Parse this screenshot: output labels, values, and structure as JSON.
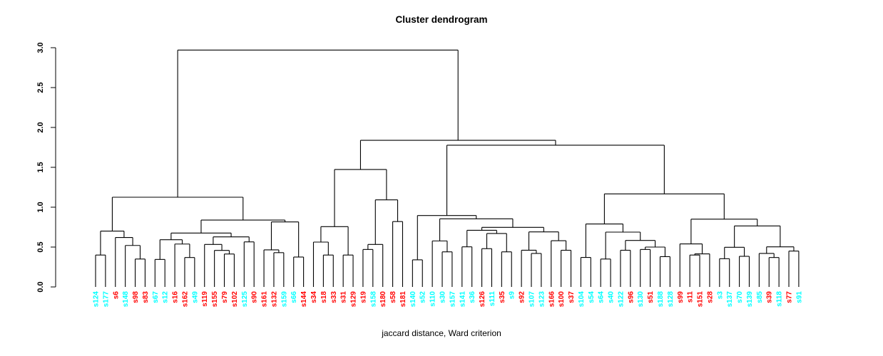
{
  "title": "Cluster dendrogram",
  "caption": "jaccard distance, Ward criterion",
  "palette": {
    "red": "#FF0000",
    "cyan": "#00FFFF",
    "line": "#000000"
  },
  "chart_data": {
    "type": "dendrogram",
    "title": "Cluster dendrogram",
    "xlabel": "jaccard distance, Ward criterion",
    "y_axis": {
      "label": "",
      "min": 0,
      "max": 3,
      "ticks": [
        "0.0",
        "0.5",
        "1.0",
        "1.5",
        "2.0",
        "2.5",
        "3.0"
      ]
    },
    "legend": "none",
    "grid": false,
    "leaves": [
      {
        "label": "s124",
        "color": "cyan"
      },
      {
        "label": "s177",
        "color": "cyan"
      },
      {
        "label": "s6",
        "color": "red"
      },
      {
        "label": "s148",
        "color": "cyan"
      },
      {
        "label": "s98",
        "color": "red"
      },
      {
        "label": "s83",
        "color": "red"
      },
      {
        "label": "s67",
        "color": "cyan"
      },
      {
        "label": "s12",
        "color": "cyan"
      },
      {
        "label": "s16",
        "color": "red"
      },
      {
        "label": "s162",
        "color": "red"
      },
      {
        "label": "s49",
        "color": "cyan"
      },
      {
        "label": "s119",
        "color": "red"
      },
      {
        "label": "s155",
        "color": "red"
      },
      {
        "label": "s79",
        "color": "red"
      },
      {
        "label": "s102",
        "color": "red"
      },
      {
        "label": "s125",
        "color": "cyan"
      },
      {
        "label": "s90",
        "color": "red"
      },
      {
        "label": "s161",
        "color": "red"
      },
      {
        "label": "s132",
        "color": "red"
      },
      {
        "label": "s159",
        "color": "cyan"
      },
      {
        "label": "s66",
        "color": "cyan"
      },
      {
        "label": "s144",
        "color": "red"
      },
      {
        "label": "s34",
        "color": "red"
      },
      {
        "label": "s18",
        "color": "red"
      },
      {
        "label": "s33",
        "color": "red"
      },
      {
        "label": "s31",
        "color": "red"
      },
      {
        "label": "s129",
        "color": "red"
      },
      {
        "label": "s19",
        "color": "red"
      },
      {
        "label": "s158",
        "color": "cyan"
      },
      {
        "label": "s180",
        "color": "red"
      },
      {
        "label": "s58",
        "color": "red"
      },
      {
        "label": "s181",
        "color": "red"
      },
      {
        "label": "s140",
        "color": "cyan"
      },
      {
        "label": "s52",
        "color": "cyan"
      },
      {
        "label": "s110",
        "color": "cyan"
      },
      {
        "label": "s30",
        "color": "cyan"
      },
      {
        "label": "s157",
        "color": "cyan"
      },
      {
        "label": "s141",
        "color": "cyan"
      },
      {
        "label": "s36",
        "color": "cyan"
      },
      {
        "label": "s126",
        "color": "red"
      },
      {
        "label": "s111",
        "color": "cyan"
      },
      {
        "label": "s35",
        "color": "red"
      },
      {
        "label": "s9",
        "color": "cyan"
      },
      {
        "label": "s92",
        "color": "red"
      },
      {
        "label": "s107",
        "color": "cyan"
      },
      {
        "label": "s123",
        "color": "cyan"
      },
      {
        "label": "s166",
        "color": "red"
      },
      {
        "label": "s100",
        "color": "red"
      },
      {
        "label": "s37",
        "color": "red"
      },
      {
        "label": "s104",
        "color": "cyan"
      },
      {
        "label": "s54",
        "color": "cyan"
      },
      {
        "label": "s64",
        "color": "cyan"
      },
      {
        "label": "s40",
        "color": "cyan"
      },
      {
        "label": "s122",
        "color": "cyan"
      },
      {
        "label": "s96",
        "color": "red"
      },
      {
        "label": "s130",
        "color": "cyan"
      },
      {
        "label": "s51",
        "color": "red"
      },
      {
        "label": "s188",
        "color": "cyan"
      },
      {
        "label": "s128",
        "color": "cyan"
      },
      {
        "label": "s99",
        "color": "red"
      },
      {
        "label": "s11",
        "color": "red"
      },
      {
        "label": "s151",
        "color": "red"
      },
      {
        "label": "s28",
        "color": "red"
      },
      {
        "label": "s3",
        "color": "cyan"
      },
      {
        "label": "s137",
        "color": "cyan"
      },
      {
        "label": "s70",
        "color": "cyan"
      },
      {
        "label": "s139",
        "color": "cyan"
      },
      {
        "label": "s85",
        "color": "cyan"
      },
      {
        "label": "s39",
        "color": "red"
      },
      {
        "label": "s118",
        "color": "cyan"
      },
      {
        "label": "s77",
        "color": "red"
      },
      {
        "label": "s91",
        "color": "cyan"
      }
    ],
    "tree": [
      2.97,
      [
        1.125,
        [
          0.7,
          [
            0.4,
            "s124",
            "s177"
          ],
          [
            0.62,
            "s6",
            [
              0.52,
              "s148",
              [
                0.35,
                "s98",
                "s83"
              ]
            ]
          ]
        ],
        [
          0.839,
          [
            0.676,
            [
              0.592,
              [
                0.345,
                "s67",
                "s12"
              ],
              [
                0.538,
                "s16",
                [
                  0.369,
                  "s162",
                  "s49"
                ]
              ]
            ],
            [
              0.628,
              [
                0.533,
                "s119",
                [
                  0.458,
                  "s155",
                  [
                    0.413,
                    "s79",
                    "s102"
                  ]
                ]
              ],
              [
                0.565,
                "s125",
                "s90"
              ]
            ]
          ],
          [
            0.815,
            [
              0.465,
              "s161",
              [
                0.43,
                "s132",
                "s159"
              ]
            ],
            [
              0.375,
              "s66",
              "s144"
            ]
          ]
        ]
      ],
      [
        1.839,
        [
          1.473,
          [
            0.756,
            [
              0.5625,
              "s34",
              [
                0.4,
                "s18",
                "s33"
              ]
            ],
            [
              0.4,
              "s31",
              "s129"
            ]
          ],
          [
            1.092,
            [
              0.533,
              [
                0.47,
                "s19",
                "s158"
              ],
              "s180"
            ],
            [
              0.82,
              "s58",
              "s181"
            ]
          ]
        ],
        [
          1.777,
          [
            0.896,
            [
              0.34,
              "s140",
              "s52"
            ],
            [
              0.854,
              [
                0.577,
                "s110",
                [
                  0.44,
                  "s30",
                  "s157"
                ]
              ],
              [
                0.747,
                [
                  0.71,
                  [
                    0.503,
                    "s141",
                    "s36"
                  ],
                  [
                    0.67,
                    [
                      0.48,
                      "s126",
                      "s111"
                    ],
                    [
                      0.44,
                      "s35",
                      "s9"
                    ]
                  ]
                ],
                [
                  0.69,
                  [
                    0.46,
                    "s92",
                    [
                      0.42,
                      "s107",
                      "s123"
                    ]
                  ],
                  [
                    0.58,
                    "s166",
                    [
                      0.46,
                      "s100",
                      "s37"
                    ]
                  ]
                ]
              ]
            ]
          ],
          [
            1.167,
            [
              0.79,
              [
                0.37,
                "s104",
                "s54"
              ],
              [
                0.6875,
                [
                  0.35,
                  "s64",
                  "s40"
                ],
                [
                  0.583,
                  [
                    0.46,
                    "s122",
                    "s96"
                  ],
                  [
                    0.5,
                    [
                      0.47,
                      "s130",
                      "s51"
                    ],
                    [
                      0.38,
                      "s188",
                      "s128"
                    ]
                  ]
                ]
              ]
            ],
            [
              0.85,
              [
                0.54,
                "s99",
                [
                  0.415,
                  [
                    0.4,
                    "s11",
                    "s151"
                  ],
                  "s28"
                ]
              ],
              [
                0.765,
                [
                  0.497,
                  [
                    0.354,
                    "s3",
                    "s137"
                  ],
                  [
                    0.384,
                    "s70",
                    "s139"
                  ]
                ],
                [
                  0.503,
                  [
                    0.42,
                    "s85",
                    [
                      0.369,
                      "s39",
                      "s118"
                    ]
                  ],
                  [
                    0.45,
                    "s77",
                    "s91"
                  ]
                ]
              ]
            ]
          ]
        ]
      ]
    ]
  }
}
